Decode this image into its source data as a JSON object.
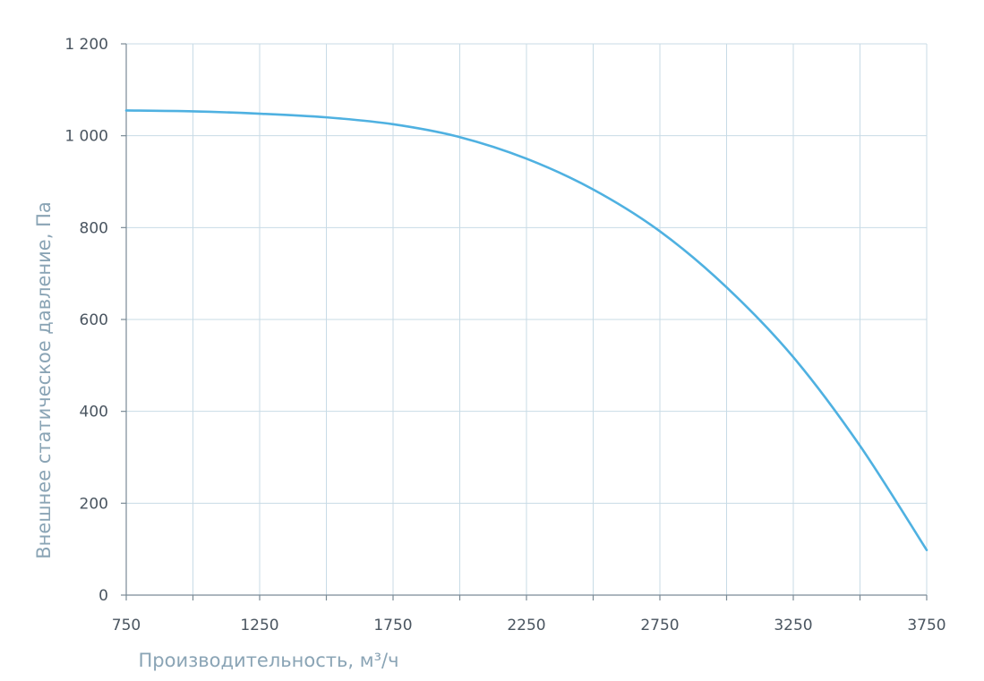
{
  "chart_data": {
    "type": "line",
    "xlabel": "Производительность, м³/ч",
    "ylabel": "Внешнее  статическое  давление, Па",
    "xlim": [
      750,
      3750
    ],
    "ylim": [
      0,
      1200
    ],
    "x_ticks": [
      750,
      1000,
      1250,
      1500,
      1750,
      2000,
      2250,
      2500,
      2750,
      3000,
      3250,
      3500,
      3750
    ],
    "x_tick_labels": [
      "750",
      "",
      "1250",
      "",
      "1750",
      "",
      "2250",
      "",
      "2750",
      "",
      "3250",
      "",
      "3750"
    ],
    "y_ticks": [
      0,
      200,
      400,
      600,
      800,
      1000,
      1200
    ],
    "y_tick_labels": [
      "0",
      "200",
      "400",
      "600",
      "800",
      "1 000",
      "1 200"
    ],
    "grid": true,
    "line_color": "#4fb1e1",
    "series": [
      {
        "name": "",
        "x": [
          750,
          1000,
          1250,
          1500,
          1750,
          2000,
          2250,
          2500,
          2750,
          3000,
          3250,
          3500,
          3750
        ],
        "y": [
          1055,
          1053,
          1048,
          1040,
          1025,
          997,
          950,
          883,
          792,
          670,
          518,
          325,
          98
        ]
      }
    ]
  }
}
